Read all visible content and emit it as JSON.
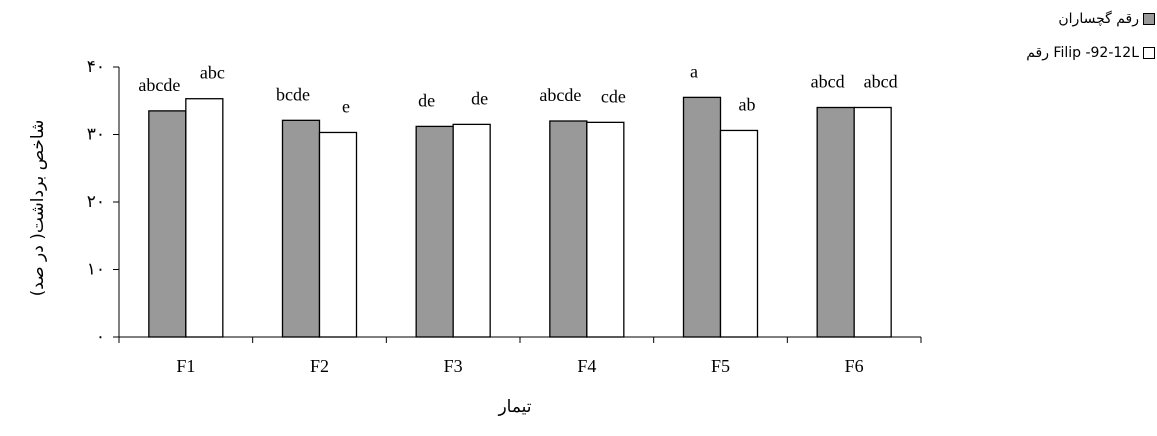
{
  "chart_data": {
    "type": "bar",
    "categories": [
      "F1",
      "F2",
      "F3",
      "F4",
      "F5",
      "F6"
    ],
    "ylabel": "شاخص برداشت( در صد)",
    "xlabel": "تیمار",
    "ylim": [
      0,
      40
    ],
    "yticks": [
      0,
      10,
      20,
      30,
      40
    ],
    "ytick_labels": [
      "۰",
      "۱۰",
      "۲۰",
      "۳۰",
      "۴۰"
    ],
    "grid": false,
    "legend_position": "top-right",
    "series": [
      {
        "name": "رقم گچساران",
        "color": "#999999",
        "values": [
          33.5,
          32.1,
          31.2,
          32.0,
          35.5,
          34.0
        ],
        "labels": [
          "abcde",
          "bcde",
          "de",
          "abcde",
          "a",
          "abcd"
        ]
      },
      {
        "name": "رقم Filip -92-12L",
        "color": "#ffffff",
        "values": [
          35.3,
          30.3,
          31.5,
          31.8,
          30.6,
          34.0
        ],
        "labels": [
          "abc",
          "e",
          "de",
          "cde",
          "ab",
          "abcd"
        ]
      }
    ]
  }
}
